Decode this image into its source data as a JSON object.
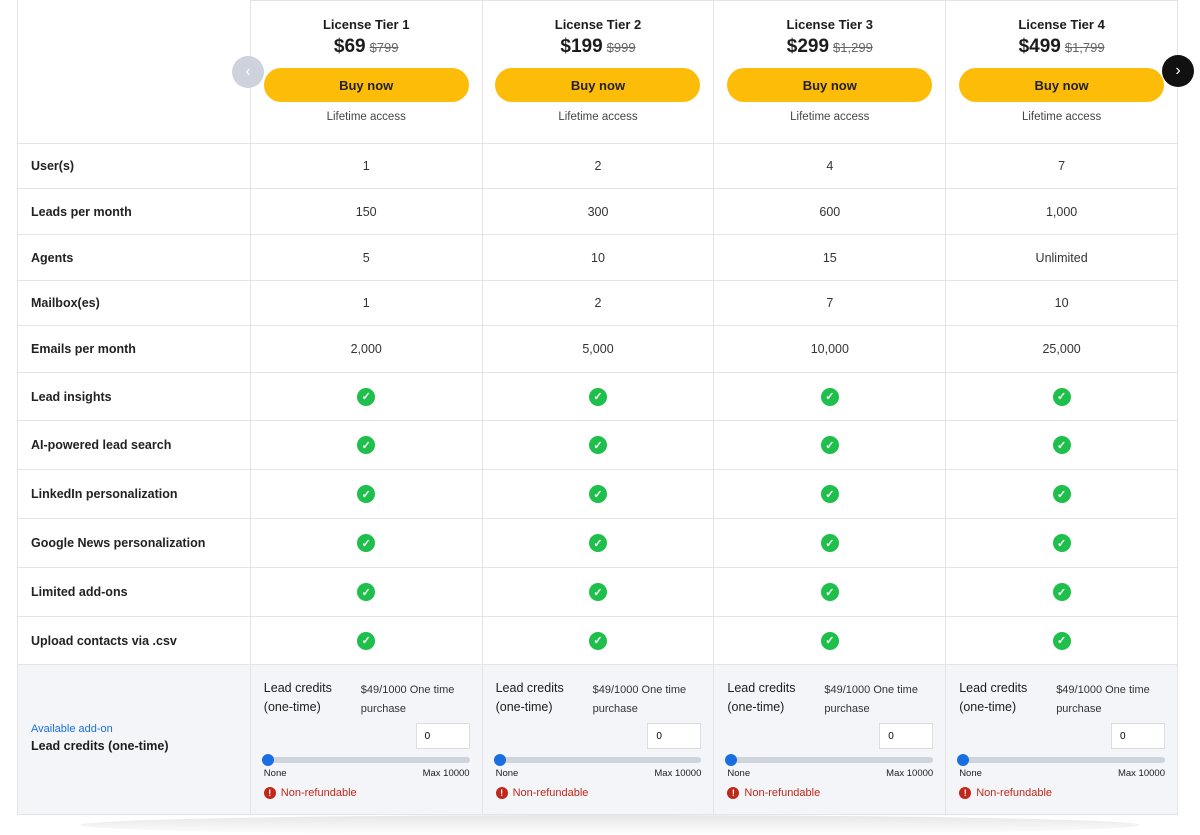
{
  "tiers": [
    {
      "name": "License Tier 1",
      "price": "$69",
      "old_price": "$799",
      "buy": "Buy now",
      "note": "Lifetime access"
    },
    {
      "name": "License Tier 2",
      "price": "$199",
      "old_price": "$999",
      "buy": "Buy now",
      "note": "Lifetime access"
    },
    {
      "name": "License Tier 3",
      "price": "$299",
      "old_price": "$1,299",
      "buy": "Buy now",
      "note": "Lifetime access"
    },
    {
      "name": "License Tier 4",
      "price": "$499",
      "old_price": "$1,799",
      "buy": "Buy now",
      "note": "Lifetime access"
    }
  ],
  "rows": [
    {
      "label": "User(s)",
      "values": [
        "1",
        "2",
        "4",
        "7"
      ]
    },
    {
      "label": "Leads per month",
      "values": [
        "150",
        "300",
        "600",
        "1,000"
      ]
    },
    {
      "label": "Agents",
      "values": [
        "5",
        "10",
        "15",
        "Unlimited"
      ]
    },
    {
      "label": "Mailbox(es)",
      "values": [
        "1",
        "2",
        "7",
        "10"
      ]
    },
    {
      "label": "Emails per month",
      "values": [
        "2,000",
        "5,000",
        "10,000",
        "25,000"
      ]
    },
    {
      "label": "Lead insights",
      "check": true
    },
    {
      "label": "AI-powered lead search",
      "check": true
    },
    {
      "label": "LinkedIn personalization",
      "check": true
    },
    {
      "label": "Google News personalization",
      "check": true
    },
    {
      "label": "Limited add-ons",
      "check": true
    },
    {
      "label": "Upload contacts via .csv",
      "check": true
    }
  ],
  "addon": {
    "sub": "Available add-on",
    "title": "Lead credits (one-time)",
    "cell_title": "Lead credits (one-time)",
    "cell_price": "$49/1000 One time purchase",
    "quantity": "0",
    "slider_value": 0,
    "min_label": "None",
    "max_label": "Max 10000",
    "warning": "Non-refundable"
  },
  "nav": {
    "prev_icon": "chevron-left-icon",
    "next_icon": "chevron-right-icon"
  },
  "colors": {
    "accent": "#fdbc07",
    "check": "#1fbf4c",
    "link": "#1a6fe0",
    "warning": "#c0281a"
  }
}
